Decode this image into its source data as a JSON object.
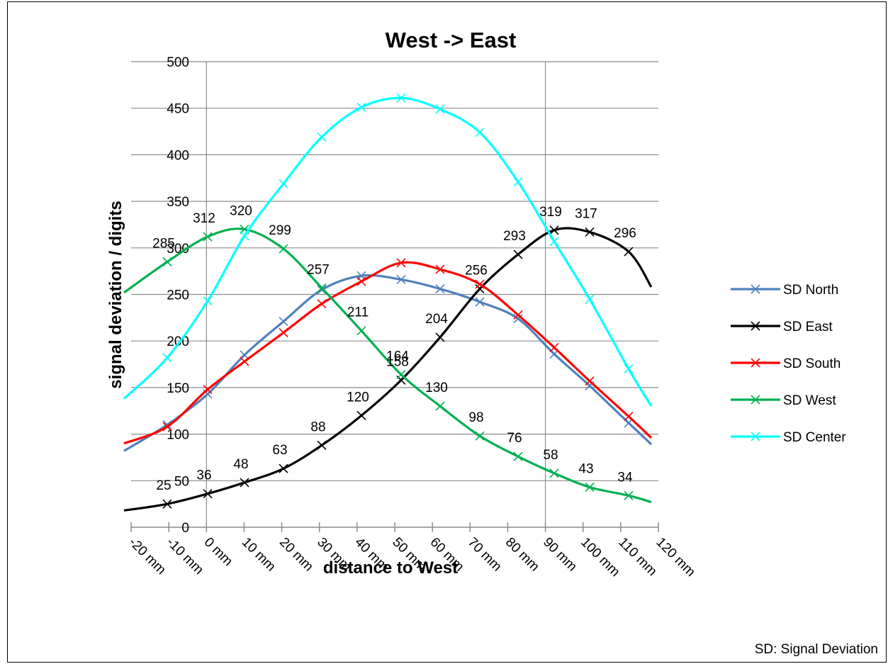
{
  "chart_data": {
    "type": "line",
    "title": "West -> East",
    "xlabel": "distance to West",
    "ylabel": "signal deviation / digits",
    "note": "SD: Signal Deviation",
    "ylim": [
      0,
      500
    ],
    "yticks": [
      "0",
      "50",
      "100",
      "150",
      "200",
      "250",
      "300",
      "350",
      "400",
      "450",
      "500"
    ],
    "categories": [
      "-20 mm",
      "-10 mm",
      "0 mm",
      "10 mm",
      "20 mm",
      "30 mm",
      "40 mm",
      "50 mm",
      "60 mm",
      "70 mm",
      "80 mm",
      "90 mm",
      "100 mm",
      "110 mm",
      "120 mm"
    ],
    "legend_position": "right",
    "grid": true,
    "series": [
      {
        "name": "SD North",
        "color": "#4f81bd",
        "x": [
          -20,
          -10,
          0,
          10,
          20,
          30,
          40,
          50,
          60,
          70,
          80,
          90,
          100,
          110,
          120
        ],
        "values": [
          82,
          110,
          143,
          185,
          221,
          255,
          270,
          266,
          256,
          242,
          224,
          186,
          152,
          112,
          89
        ],
        "labels": null
      },
      {
        "name": "SD East",
        "color": "#000000",
        "x": [
          -20,
          -10,
          0,
          10,
          20,
          30,
          40,
          50,
          60,
          70,
          80,
          90,
          100,
          110,
          120
        ],
        "values": [
          18,
          25,
          36,
          48,
          63,
          88,
          120,
          158,
          204,
          256,
          293,
          319,
          317,
          296,
          258
        ],
        "labels": [
          null,
          "25",
          "36",
          "48",
          "63",
          "88",
          "120",
          "158",
          "204",
          "256",
          "293",
          "319",
          "317",
          "296",
          null
        ]
      },
      {
        "name": "SD South",
        "color": "#ff0000",
        "x": [
          -20,
          -10,
          0,
          10,
          20,
          30,
          40,
          50,
          60,
          70,
          80,
          90,
          100,
          110,
          120
        ],
        "values": [
          90,
          108,
          148,
          178,
          209,
          240,
          264,
          284,
          277,
          261,
          228,
          193,
          157,
          119,
          96
        ],
        "labels": null
      },
      {
        "name": "SD West",
        "color": "#00b050",
        "x": [
          -20,
          -10,
          0,
          10,
          20,
          30,
          40,
          50,
          60,
          70,
          80,
          90,
          100,
          110,
          120
        ],
        "values": [
          252,
          285,
          312,
          320,
          299,
          257,
          211,
          164,
          130,
          98,
          76,
          58,
          43,
          34,
          27
        ],
        "labels": [
          null,
          "285",
          "312",
          "320",
          "299",
          "257",
          "211",
          "164",
          "130",
          "98",
          "76",
          "58",
          "43",
          "34",
          null
        ]
      },
      {
        "name": "SD Center",
        "color": "#00ffff",
        "x": [
          -20,
          -10,
          0,
          10,
          20,
          30,
          40,
          50,
          60,
          70,
          80,
          90,
          100,
          110,
          120
        ],
        "values": [
          138,
          182,
          243,
          313,
          369,
          419,
          451,
          461,
          449,
          424,
          371,
          307,
          245,
          170,
          130
        ],
        "labels": null
      }
    ]
  }
}
